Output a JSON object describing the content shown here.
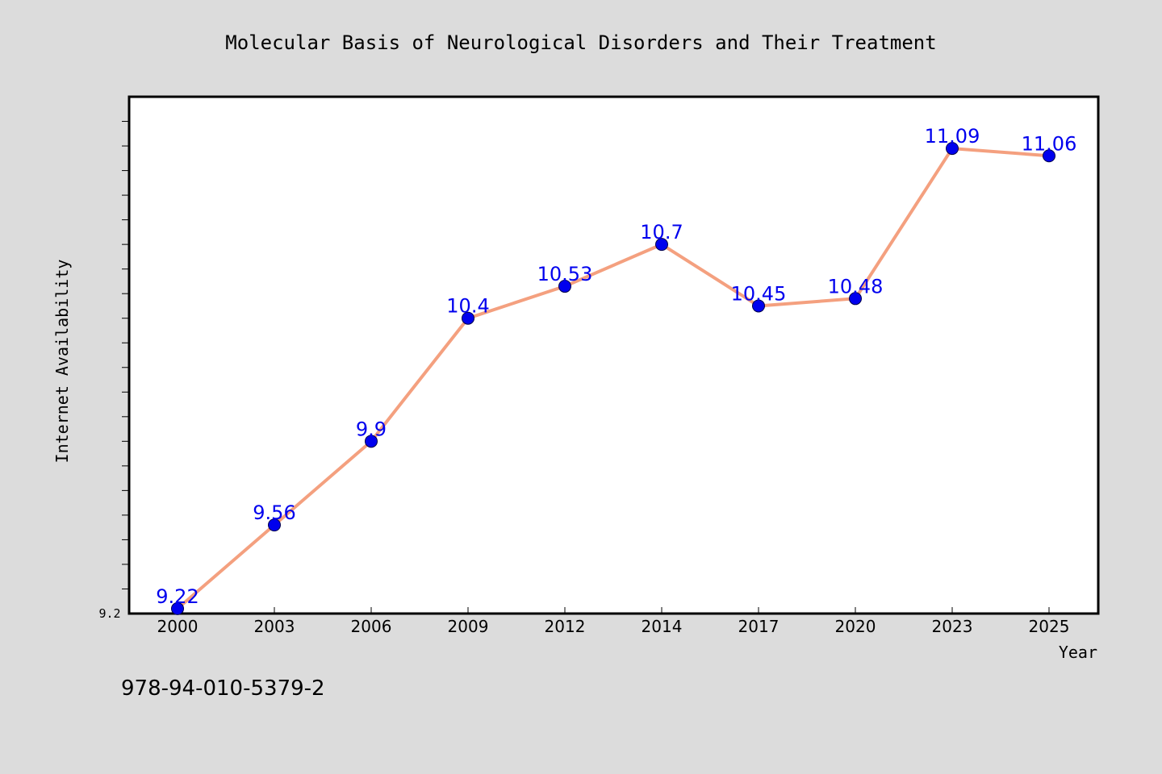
{
  "chart_data": {
    "type": "line",
    "title": "Molecular Basis of Neurological Disorders and Their Treatment",
    "xlabel": "Year",
    "ylabel": "Internet Availability",
    "categories": [
      "2000",
      "2003",
      "2006",
      "2009",
      "2012",
      "2014",
      "2017",
      "2020",
      "2023",
      "2025"
    ],
    "series": [
      {
        "values": [
          9.22,
          9.56,
          9.9,
          10.4,
          10.53,
          10.7,
          10.45,
          10.48,
          11.09,
          11.06
        ],
        "line_color": "#f4a07f",
        "marker_color": "#0000ee"
      }
    ],
    "data_labels": [
      "9.22",
      "9.56",
      "9.9",
      "10.4",
      "10.53",
      "10.7",
      "10.45",
      "10.48",
      "11.09",
      "11.06"
    ],
    "ylim": [
      9.2,
      11.3
    ],
    "ytick_labels": [
      "9.2"
    ],
    "grid": false,
    "data_label_color": "#0000ee"
  },
  "footer": {
    "isbn": "978-94-010-5379-2"
  }
}
